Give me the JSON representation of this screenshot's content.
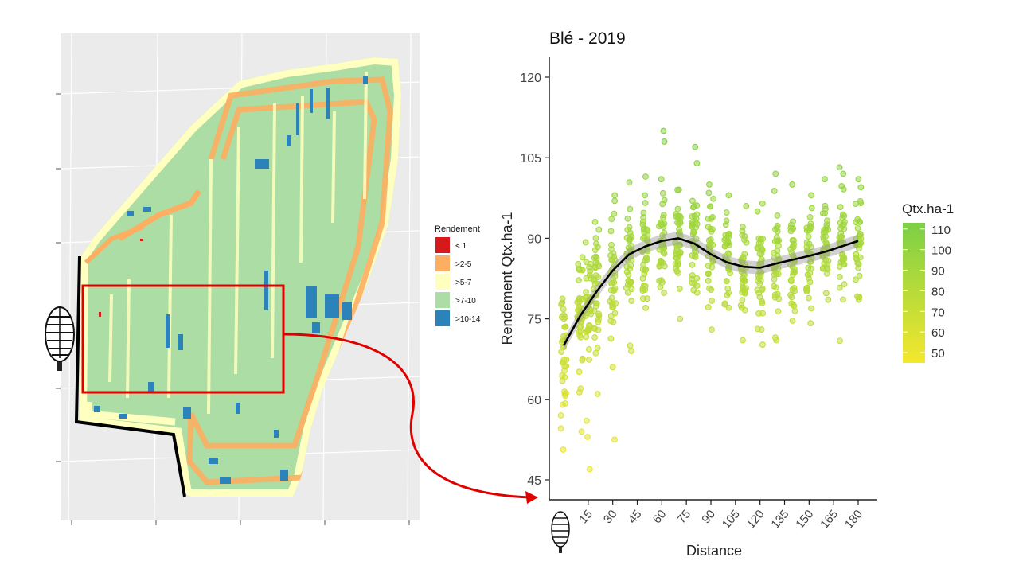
{
  "map_panel": {
    "legend_title": "Rendement",
    "legend": [
      {
        "label": "< 1",
        "color": "#d7191c"
      },
      {
        "label": ">2-5",
        "color": "#fdae61"
      },
      {
        "label": ">5-7",
        "color": "#ffffbf"
      },
      {
        "label": ">7-10",
        "color": "#abdda4"
      },
      {
        "label": ">10-14",
        "color": "#2b83ba"
      }
    ],
    "highlight_color": "#e00000",
    "background_color": "#ebebeb",
    "tree_icon": "tree-icon"
  },
  "chart_data": {
    "type": "scatter",
    "title": "Blé - 2019",
    "xlabel": "Distance",
    "ylabel": "Rendement Qtx.ha-1",
    "x_ticks": [
      "15",
      "30",
      "45",
      "60",
      "75",
      "90",
      "105",
      "120",
      "135",
      "150",
      "165",
      "180"
    ],
    "y_ticks": [
      45,
      60,
      75,
      90,
      105,
      120
    ],
    "xlim": [
      -7,
      191
    ],
    "ylim": [
      43,
      124
    ],
    "colorbar": {
      "title": "Qtx.ha-1",
      "ticks": [
        50,
        60,
        70,
        80,
        90,
        100,
        110
      ],
      "range": [
        45,
        113
      ],
      "color_low": "#f5e72d",
      "color_high": "#7ccf45"
    },
    "trend": {
      "x": [
        0,
        10,
        20,
        30,
        40,
        50,
        60,
        70,
        80,
        90,
        100,
        110,
        120,
        130,
        140,
        150,
        160,
        170,
        180
      ],
      "y": [
        70,
        75.5,
        80,
        84,
        87,
        88.5,
        89.5,
        90,
        89,
        87,
        85.5,
        84.7,
        84.5,
        85.3,
        86,
        86.7,
        87.5,
        88.5,
        89.5
      ]
    },
    "columns": [
      {
        "x": 0,
        "mean": 69,
        "sd": 7,
        "outliers": [
          57,
          59,
          61
        ]
      },
      {
        "x": 10,
        "mean": 77,
        "sd": 6.5,
        "outliers": [
          54,
          62
        ]
      },
      {
        "x": 15,
        "mean": 78,
        "sd": 6,
        "outliers": [
          47,
          53,
          56
        ]
      },
      {
        "x": 20,
        "mean": 80,
        "sd": 6,
        "outliers": [
          61
        ]
      },
      {
        "x": 30,
        "mean": 84,
        "sd": 5.5,
        "outliers": [
          52.5,
          66
        ]
      },
      {
        "x": 40,
        "mean": 86,
        "sd": 5,
        "outliers": [
          69,
          70
        ]
      },
      {
        "x": 50,
        "mean": 88,
        "sd": 4.5,
        "outliers": [
          98
        ]
      },
      {
        "x": 60,
        "mean": 89,
        "sd": 4.5,
        "outliers": [
          108,
          110,
          101
        ]
      },
      {
        "x": 70,
        "mean": 90,
        "sd": 4.5,
        "outliers": [
          75,
          99
        ]
      },
      {
        "x": 80,
        "mean": 90,
        "sd": 4.5,
        "outliers": [
          107,
          104
        ]
      },
      {
        "x": 90,
        "mean": 88,
        "sd": 4.5,
        "outliers": [
          100
        ]
      },
      {
        "x": 100,
        "mean": 86,
        "sd": 4.5,
        "outliers": [
          98
        ]
      },
      {
        "x": 110,
        "mean": 84,
        "sd": 4.5,
        "outliers": [
          71,
          96
        ]
      },
      {
        "x": 120,
        "mean": 83,
        "sd": 4.5,
        "outliers": [
          73,
          95
        ]
      },
      {
        "x": 130,
        "mean": 85,
        "sd": 4.5,
        "outliers": [
          71,
          102
        ]
      },
      {
        "x": 140,
        "mean": 86,
        "sd": 4.5,
        "outliers": [
          100
        ]
      },
      {
        "x": 150,
        "mean": 87,
        "sd": 4.5,
        "outliers": [
          98
        ]
      },
      {
        "x": 160,
        "mean": 88,
        "sd": 4.5,
        "outliers": [
          101
        ]
      },
      {
        "x": 170,
        "mean": 89,
        "sd": 4.5,
        "outliers": [
          102
        ]
      },
      {
        "x": 180,
        "mean": 88,
        "sd": 4.5,
        "outliers": [
          79,
          101
        ]
      }
    ]
  }
}
